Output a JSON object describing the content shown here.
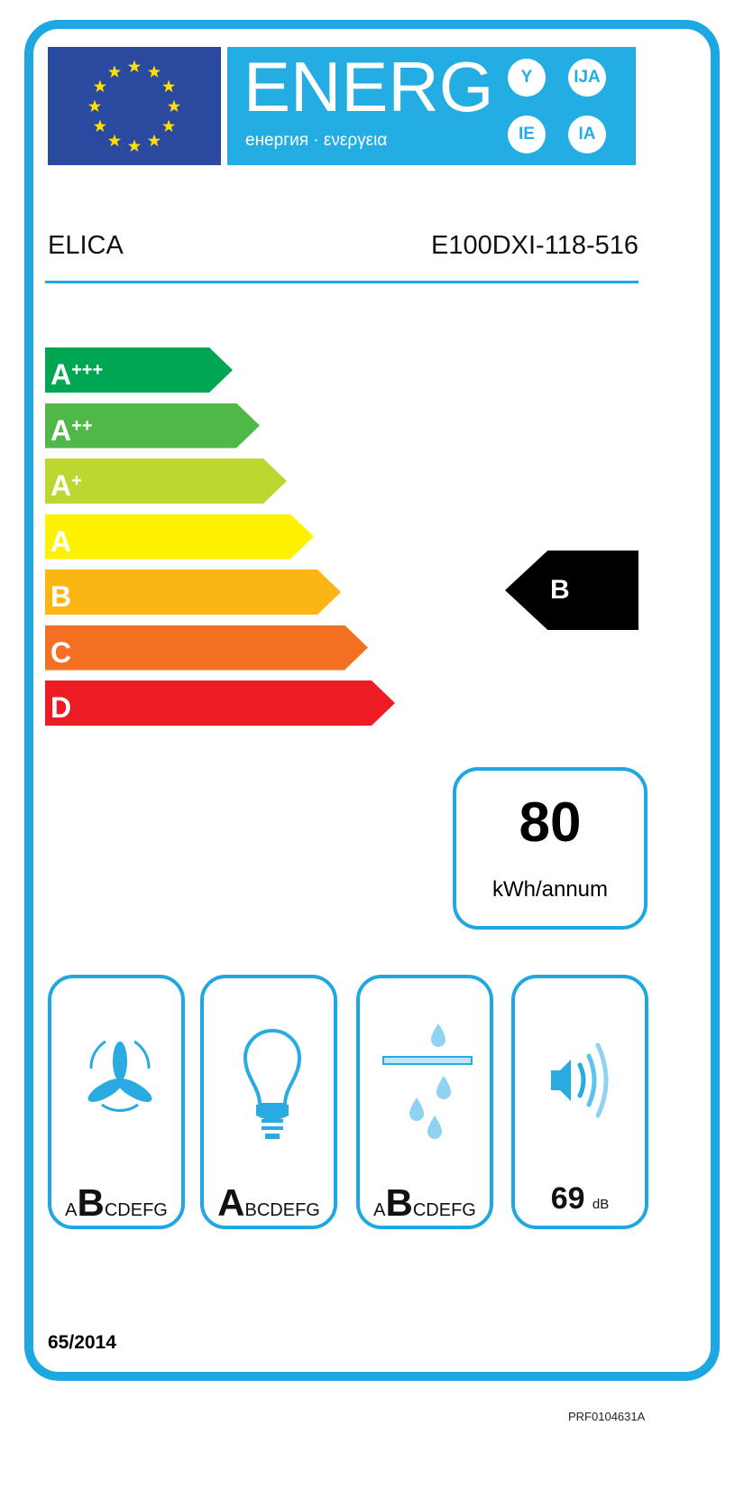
{
  "header": {
    "energ": "ENERG",
    "subtitle": "енергия · ενεργεια",
    "suffixes": [
      "Y",
      "IJA",
      "IE",
      "IA"
    ]
  },
  "supplier": "ELICA",
  "model": "E100DXI-118-516",
  "scale": [
    {
      "label": "A",
      "plus": "+++",
      "color": "#00a651"
    },
    {
      "label": "A",
      "plus": "++",
      "color": "#50b848"
    },
    {
      "label": "A",
      "plus": "+",
      "color": "#bed630"
    },
    {
      "label": "A",
      "plus": "",
      "color": "#fff200"
    },
    {
      "label": "B",
      "plus": "",
      "color": "#fbb614"
    },
    {
      "label": "C",
      "plus": "",
      "color": "#f36f21"
    },
    {
      "label": "D",
      "plus": "",
      "color": "#ed1c24"
    }
  ],
  "rating": "B",
  "energy": {
    "value": "80",
    "unit": "kWh/annum"
  },
  "pictograms": [
    {
      "icon": "fan-icon",
      "pre": "A",
      "cls": "B",
      "post": "CDEFG"
    },
    {
      "icon": "light-bulb-icon",
      "pre": "",
      "cls": "A",
      "post": "BCDEFG"
    },
    {
      "icon": "grease-filter-icon",
      "pre": "A",
      "cls": "B",
      "post": "CDEFG"
    },
    {
      "icon": "noise-icon",
      "value": "69",
      "unit": "dB"
    }
  ],
  "regulation": "65/2014",
  "code": "PRF0104631A",
  "colors": {
    "frame": "#1ea7e1",
    "flag": "#2a4aa0",
    "stars": "#ffde00"
  }
}
